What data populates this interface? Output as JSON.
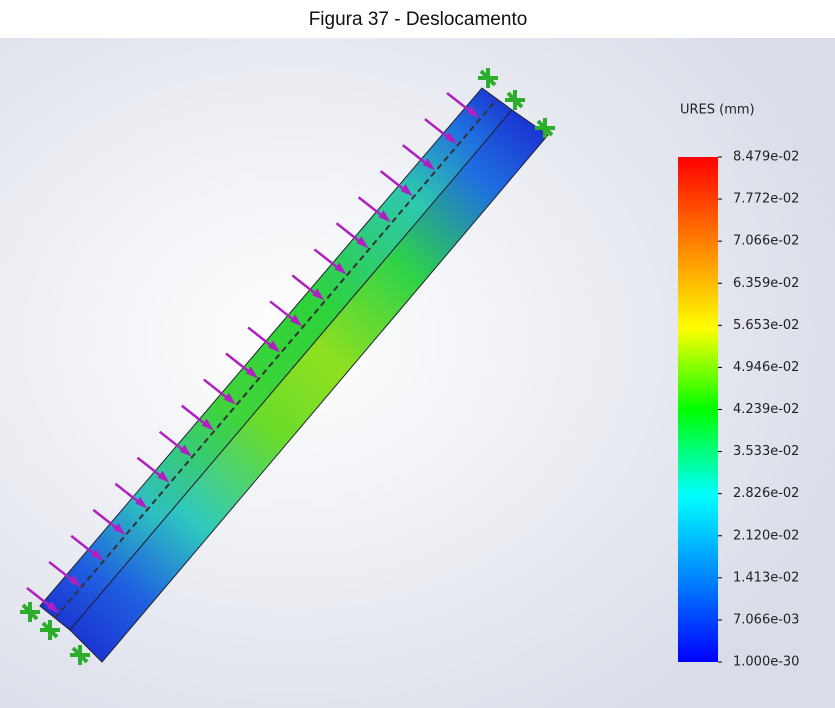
{
  "title": "Figura 37 - Deslocamento",
  "legend": {
    "title": "URES (mm)",
    "labels": [
      "8.479e-02",
      "7.772e-02",
      "7.066e-02",
      "6.359e-02",
      "5.653e-02",
      "4.946e-02",
      "4.239e-02",
      "3.533e-02",
      "2.826e-02",
      "2.120e-02",
      "1.413e-02",
      "7.066e-03",
      "1.000e-30"
    ]
  }
}
